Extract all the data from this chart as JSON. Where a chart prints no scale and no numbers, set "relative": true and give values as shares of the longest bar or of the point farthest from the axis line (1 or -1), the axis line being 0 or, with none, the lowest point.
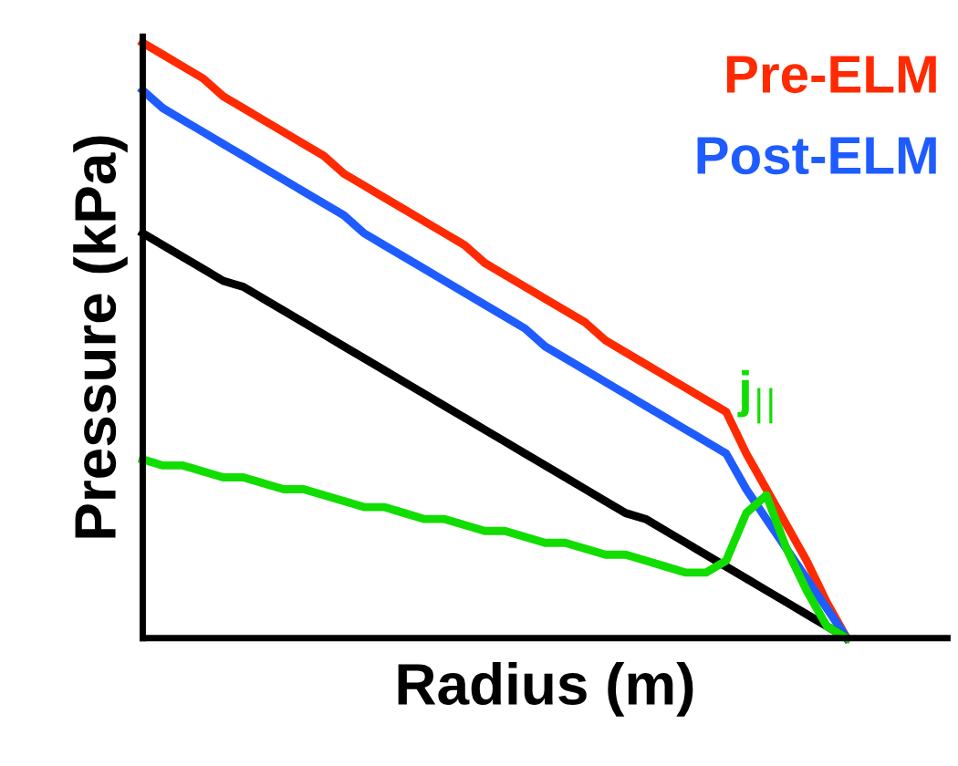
{
  "chart_data": {
    "type": "line",
    "relative": true,
    "xlabel": "Radius (m)",
    "ylabel": "Pressure (kPa)",
    "marker": "none",
    "line_style": "solid",
    "categories": [
      null,
      null,
      null,
      null,
      null,
      null,
      null,
      null,
      null,
      null,
      null,
      null,
      null,
      null,
      null,
      null,
      null,
      null,
      null,
      null,
      null,
      null,
      null,
      null,
      null,
      null,
      null,
      null,
      null,
      null,
      null,
      null,
      null,
      null,
      null,
      null,
      null,
      null,
      null,
      null,
      null
    ],
    "series": [
      {
        "name": "Pre-ELM",
        "color": "#ff2a00",
        "values": [
          1,
          0.98,
          0.96,
          0.94,
          0.91,
          0.89,
          0.87,
          0.85,
          0.83,
          0.81,
          0.78,
          0.76,
          0.74,
          0.72,
          0.7,
          0.68,
          0.66,
          0.63,
          0.61,
          0.59,
          0.57,
          0.55,
          0.53,
          0.5,
          0.48,
          0.46,
          0.44,
          0.42,
          0.4,
          0.38,
          0.31,
          0.25,
          0.19,
          0.13,
          0.06,
          0,
          null,
          null,
          null,
          null,
          null
        ]
      },
      {
        "name": "Post-ELM",
        "color": "#1f5cff",
        "values": [
          0.92,
          0.89,
          0.87,
          0.85,
          0.83,
          0.81,
          0.79,
          0.77,
          0.75,
          0.73,
          0.71,
          0.68,
          0.66,
          0.64,
          0.62,
          0.6,
          0.58,
          0.56,
          0.54,
          0.52,
          0.49,
          0.47,
          0.45,
          0.43,
          0.41,
          0.39,
          0.37,
          0.35,
          0.33,
          0.31,
          0.25,
          0.2,
          0.15,
          0.1,
          0.05,
          0,
          null,
          null,
          null,
          null,
          null
        ]
      },
      {
        "color": "#000000",
        "values": [
          0.68,
          0.66,
          0.64,
          0.62,
          0.6,
          0.59,
          0.57,
          0.55,
          0.53,
          0.51,
          0.49,
          0.47,
          0.45,
          0.43,
          0.41,
          0.39,
          0.37,
          0.35,
          0.33,
          0.31,
          0.29,
          0.27,
          0.25,
          0.23,
          0.21,
          0.2,
          0.18,
          0.16,
          0.14,
          0.12,
          0.1,
          0.08,
          0.06,
          0.04,
          0.02,
          0,
          null,
          null,
          null,
          null,
          null
        ]
      },
      {
        "name": "j$_{||}$",
        "color": "#11dd00",
        "values": [
          0.3,
          0.29,
          0.29,
          0.28,
          0.27,
          0.27,
          0.26,
          0.25,
          0.25,
          0.24,
          0.23,
          0.22,
          0.22,
          0.21,
          0.2,
          0.2,
          0.19,
          0.18,
          0.18,
          0.17,
          0.16,
          0.16,
          0.15,
          0.14,
          0.14,
          0.13,
          0.12,
          0.11,
          0.11,
          0.13,
          0.21,
          0.24,
          0.15,
          0.08,
          0.02,
          0,
          null,
          null,
          null,
          null,
          null
        ]
      }
    ]
  }
}
